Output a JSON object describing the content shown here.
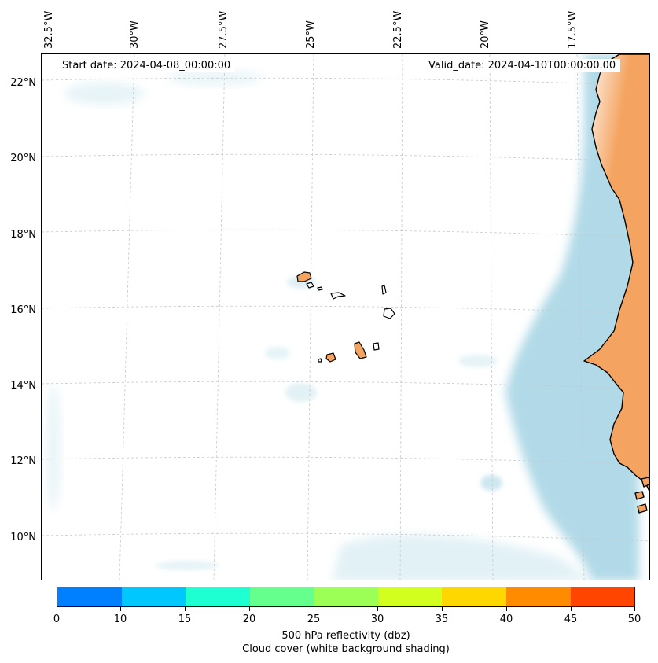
{
  "map": {
    "start_date": "Start date: 2024-04-08_00:00:00",
    "valid_date": "Valid_date: 2024-04-10T00:00:00.00",
    "longitude_labels": [
      "32.5°W",
      "30°W",
      "27.5°W",
      "25°W",
      "22.5°W",
      "20°W",
      "17.5°W"
    ],
    "latitude_labels": [
      "22°N",
      "20°N",
      "18°N",
      "16°N",
      "14°N",
      "12°N",
      "10°N"
    ],
    "colors": {
      "land": "#f4a460",
      "coastline": "#000000",
      "cloud_shading": "#add8e6",
      "gridline": "#c8c8c8"
    },
    "layers": [
      "coastline",
      "land",
      "cloud-cover",
      "gridlines"
    ]
  },
  "colorbar": {
    "title": "500 hPa reflectivity (dbz)",
    "subtitle": "Cloud cover (white background shading)",
    "ticks": [
      "0",
      "10",
      "15",
      "20",
      "25",
      "30",
      "35",
      "40",
      "45",
      "50"
    ],
    "colors": [
      "#0080ff",
      "#00c8ff",
      "#1effd2",
      "#64ff8c",
      "#9bff55",
      "#d2ff1e",
      "#ffd700",
      "#ff8c00",
      "#ff4500"
    ]
  }
}
